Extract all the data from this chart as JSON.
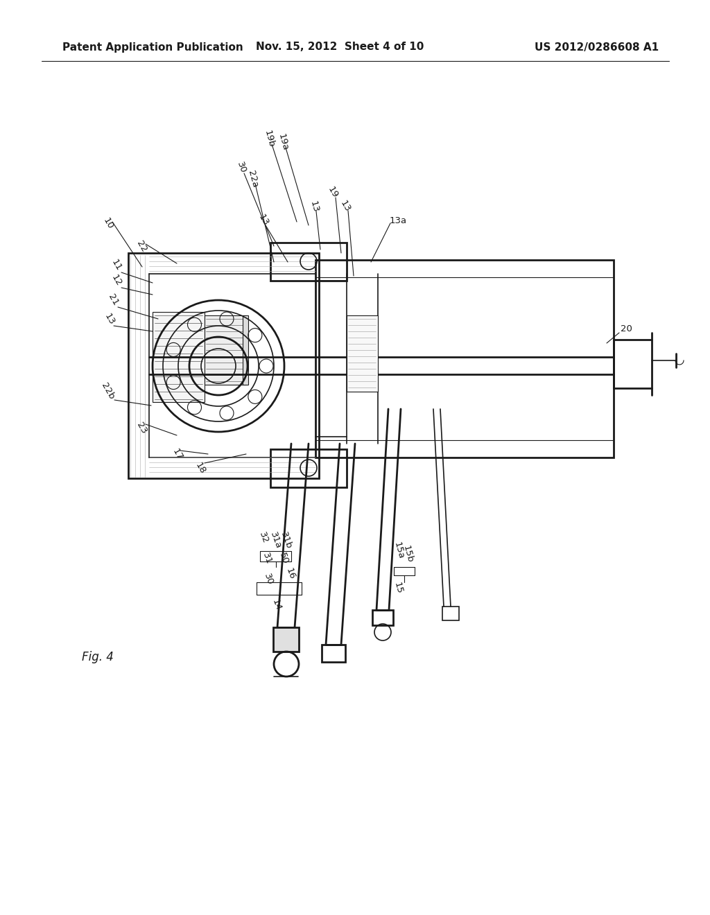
{
  "background_color": "#ffffff",
  "header_left": "Patent Application Publication",
  "header_mid": "Nov. 15, 2012  Sheet 4 of 10",
  "header_right": "US 2012/0286608 A1",
  "fig_label": "Fig. 4",
  "title_fontsize": 11,
  "label_fontsize": 9.5
}
